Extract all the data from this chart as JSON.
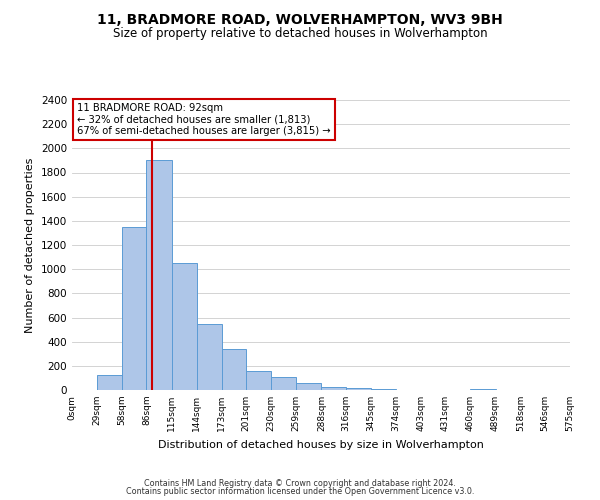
{
  "title": "11, BRADMORE ROAD, WOLVERHAMPTON, WV3 9BH",
  "subtitle": "Size of property relative to detached houses in Wolverhampton",
  "xlabel": "Distribution of detached houses by size in Wolverhampton",
  "ylabel": "Number of detached properties",
  "bar_edges": [
    0,
    29,
    58,
    86,
    115,
    144,
    173,
    201,
    230,
    259,
    288,
    316,
    345,
    374,
    403,
    431,
    460,
    489,
    518,
    546,
    575
  ],
  "bar_heights": [
    0,
    125,
    1350,
    1900,
    1050,
    550,
    340,
    155,
    110,
    60,
    25,
    20,
    5,
    0,
    0,
    0,
    5,
    0,
    0,
    0,
    0
  ],
  "bar_color": "#aec6e8",
  "bar_edge_color": "#5b9bd5",
  "property_line_x": 92,
  "annotation_title": "11 BRADMORE ROAD: 92sqm",
  "annotation_line1": "← 32% of detached houses are smaller (1,813)",
  "annotation_line2": "67% of semi-detached houses are larger (3,815) →",
  "annotation_box_color": "#ffffff",
  "annotation_box_edge": "#cc0000",
  "property_line_color": "#cc0000",
  "ylim": [
    0,
    2400
  ],
  "xlim": [
    0,
    575
  ],
  "tick_labels": [
    "0sqm",
    "29sqm",
    "58sqm",
    "86sqm",
    "115sqm",
    "144sqm",
    "173sqm",
    "201sqm",
    "230sqm",
    "259sqm",
    "288sqm",
    "316sqm",
    "345sqm",
    "374sqm",
    "403sqm",
    "431sqm",
    "460sqm",
    "489sqm",
    "518sqm",
    "546sqm",
    "575sqm"
  ],
  "yticks": [
    0,
    200,
    400,
    600,
    800,
    1000,
    1200,
    1400,
    1600,
    1800,
    2000,
    2200,
    2400
  ],
  "footer1": "Contains HM Land Registry data © Crown copyright and database right 2024.",
  "footer2": "Contains public sector information licensed under the Open Government Licence v3.0.",
  "background_color": "#ffffff",
  "grid_color": "#cccccc"
}
